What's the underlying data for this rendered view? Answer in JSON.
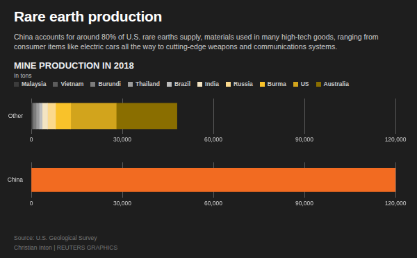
{
  "title": "Rare earth production",
  "subtitle": "China accounts for around 80% of U.S. rare earths supply, materials used in many high-tech goods, ranging from consumer items like electric cars all the way to cutting-edge weapons and communications systems.",
  "heading": "MINE PRODUCTION IN 2018",
  "unit": "In tons",
  "source": "Source: U.S. Geological Survey",
  "credit": "Christian Inton  |  REUTERS GRAPHICS",
  "chart_data": [
    {
      "type": "bar",
      "orientation": "horizontal",
      "stacked": true,
      "grid": true,
      "legend": "top-left",
      "categories": [
        "Other"
      ],
      "series": [
        {
          "name": "Malaysia",
          "color": "#3c3c3c",
          "values": [
            200
          ]
        },
        {
          "name": "Vietnam",
          "color": "#5c5c5c",
          "values": [
            400
          ]
        },
        {
          "name": "Burundi",
          "color": "#7c7c7c",
          "values": [
            1000
          ]
        },
        {
          "name": "Thailand",
          "color": "#9c9c9c",
          "values": [
            1000
          ]
        },
        {
          "name": "Brazil",
          "color": "#bdbdbd",
          "values": [
            1000
          ]
        },
        {
          "name": "India",
          "color": "#f3e4c2",
          "values": [
            1800
          ]
        },
        {
          "name": "Russia",
          "color": "#fbd98c",
          "values": [
            2600
          ]
        },
        {
          "name": "Burma",
          "color": "#f9c22a",
          "values": [
            5000
          ]
        },
        {
          "name": "US",
          "color": "#d2a41c",
          "values": [
            15000
          ]
        },
        {
          "name": "Australia",
          "color": "#8a6e00",
          "values": [
            20000
          ]
        }
      ],
      "xlim": [
        0,
        120000
      ],
      "xticks": [
        0,
        {
          "value": 30000,
          "label": "30,000"
        },
        {
          "value": 60000,
          "label": "60,000"
        },
        {
          "value": 90000,
          "label": "90,000"
        },
        {
          "value": 120000,
          "label": "120,000"
        }
      ]
    },
    {
      "type": "bar",
      "orientation": "horizontal",
      "grid": true,
      "categories": [
        "China"
      ],
      "values": [
        120000
      ],
      "color": "#f26b21",
      "xlim": [
        0,
        120000
      ],
      "xticks": [
        0,
        {
          "value": 30000,
          "label": "30,000"
        },
        {
          "value": 60000,
          "label": "60,000"
        },
        {
          "value": 90000,
          "label": "90,000"
        },
        {
          "value": 120000,
          "label": "120,000"
        }
      ]
    }
  ]
}
